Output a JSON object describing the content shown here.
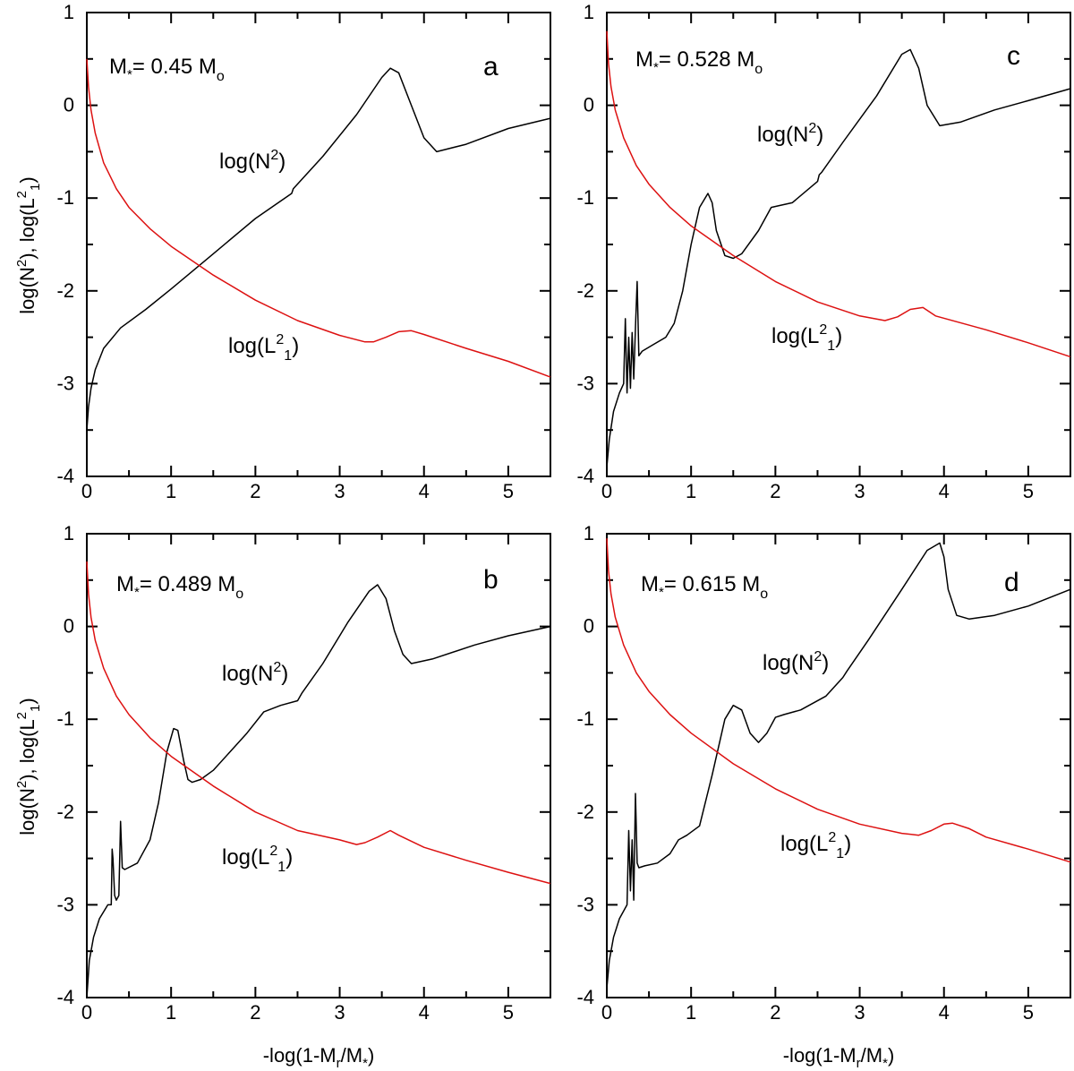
{
  "chart_data": [
    {
      "type": "line",
      "panel": "a",
      "annotation": {
        "prefix": "M",
        "prefix_sub": "*",
        "text": "= 0.45 M",
        "sub": "o"
      },
      "xlim": [
        0,
        5.5
      ],
      "ylim": [
        -4,
        1
      ],
      "xticks": [
        0,
        1,
        2,
        3,
        4,
        5
      ],
      "yticks": [
        1,
        0,
        -1,
        -2,
        -3,
        -4
      ],
      "series": [
        {
          "name": "log(N2)",
          "color": "#000000",
          "x": [
            0.0,
            0.02,
            0.05,
            0.1,
            0.2,
            0.4,
            0.7,
            1.0,
            1.5,
            2.0,
            2.43,
            2.45,
            2.8,
            3.2,
            3.5,
            3.6,
            3.7,
            3.85,
            4.0,
            4.15,
            4.5,
            5.0,
            5.5
          ],
          "y": [
            -3.5,
            -3.25,
            -3.05,
            -2.85,
            -2.62,
            -2.4,
            -2.2,
            -1.98,
            -1.6,
            -1.22,
            -0.95,
            -0.9,
            -0.55,
            -0.1,
            0.3,
            0.4,
            0.35,
            0.0,
            -0.35,
            -0.5,
            -0.42,
            -0.25,
            -0.14
          ]
        },
        {
          "name": "log(L2_1)",
          "color": "#dd1111",
          "x": [
            0.0,
            0.02,
            0.05,
            0.1,
            0.2,
            0.35,
            0.5,
            0.75,
            1.0,
            1.5,
            2.0,
            2.5,
            3.0,
            3.3,
            3.4,
            3.55,
            3.7,
            3.85,
            4.0,
            4.5,
            5.0,
            5.5
          ],
          "y": [
            0.5,
            0.2,
            -0.05,
            -0.3,
            -0.62,
            -0.9,
            -1.1,
            -1.33,
            -1.52,
            -1.83,
            -2.1,
            -2.32,
            -2.48,
            -2.55,
            -2.55,
            -2.5,
            -2.44,
            -2.43,
            -2.47,
            -2.62,
            -2.76,
            -2.93
          ]
        }
      ],
      "labels": {
        "n2": "log(N",
        "n2_sup": "2",
        "l2": "log(L",
        "l2_sup": "2",
        "l2_sub": "1",
        "close": ")"
      }
    },
    {
      "type": "line",
      "panel": "c",
      "annotation": {
        "prefix": "M",
        "prefix_sub": "*",
        "text": "= 0.528 M",
        "sub": "o"
      },
      "xlim": [
        0,
        5.5
      ],
      "ylim": [
        -4,
        1
      ],
      "xticks": [
        0,
        1,
        2,
        3,
        4,
        5
      ],
      "yticks": [
        1,
        0,
        -1,
        -2,
        -3,
        -4
      ],
      "series": [
        {
          "name": "log(N2)",
          "color": "#000000",
          "x": [
            0.0,
            0.03,
            0.08,
            0.15,
            0.2,
            0.22,
            0.24,
            0.26,
            0.28,
            0.3,
            0.32,
            0.34,
            0.36,
            0.38,
            0.42,
            0.55,
            0.7,
            0.8,
            0.9,
            1.0,
            1.1,
            1.2,
            1.25,
            1.3,
            1.4,
            1.5,
            1.6,
            1.8,
            1.95,
            2.05,
            2.2,
            2.5,
            2.52,
            2.55,
            2.8,
            3.2,
            3.5,
            3.6,
            3.7,
            3.8,
            3.95,
            4.2,
            4.6,
            5.0,
            5.5
          ],
          "y": [
            -3.9,
            -3.6,
            -3.3,
            -3.1,
            -3.0,
            -2.3,
            -3.1,
            -2.5,
            -3.05,
            -2.45,
            -2.95,
            -2.4,
            -1.9,
            -2.7,
            -2.65,
            -2.58,
            -2.5,
            -2.35,
            -2.0,
            -1.5,
            -1.1,
            -0.95,
            -1.05,
            -1.35,
            -1.62,
            -1.65,
            -1.6,
            -1.35,
            -1.1,
            -1.08,
            -1.05,
            -0.82,
            -0.75,
            -0.72,
            -0.4,
            0.1,
            0.55,
            0.6,
            0.4,
            0.0,
            -0.22,
            -0.18,
            -0.05,
            0.05,
            0.18
          ]
        },
        {
          "name": "log(L2_1)",
          "color": "#dd1111",
          "x": [
            0.0,
            0.02,
            0.05,
            0.1,
            0.2,
            0.35,
            0.5,
            0.75,
            1.0,
            1.5,
            2.0,
            2.5,
            3.0,
            3.3,
            3.45,
            3.6,
            3.75,
            3.9,
            4.5,
            5.0,
            5.5
          ],
          "y": [
            0.8,
            0.45,
            0.2,
            -0.05,
            -0.35,
            -0.65,
            -0.85,
            -1.1,
            -1.3,
            -1.62,
            -1.9,
            -2.12,
            -2.27,
            -2.32,
            -2.28,
            -2.2,
            -2.18,
            -2.27,
            -2.42,
            -2.56,
            -2.71
          ]
        }
      ],
      "labels": {
        "n2": "log(N",
        "n2_sup": "2",
        "l2": "log(L",
        "l2_sup": "2",
        "l2_sub": "1",
        "close": ")"
      }
    },
    {
      "type": "line",
      "panel": "b",
      "annotation": {
        "prefix": "M",
        "prefix_sub": "*",
        "text": "= 0.489 M",
        "sub": "o"
      },
      "xlim": [
        0,
        5.5
      ],
      "ylim": [
        -4,
        1
      ],
      "xticks": [
        0,
        1,
        2,
        3,
        4,
        5
      ],
      "yticks": [
        1,
        0,
        -1,
        -2,
        -3,
        -4
      ],
      "series": [
        {
          "name": "log(N2)",
          "color": "#000000",
          "x": [
            0.0,
            0.03,
            0.08,
            0.15,
            0.25,
            0.29,
            0.3,
            0.31,
            0.33,
            0.35,
            0.38,
            0.4,
            0.42,
            0.45,
            0.6,
            0.75,
            0.85,
            0.95,
            1.03,
            1.08,
            1.15,
            1.2,
            1.25,
            1.35,
            1.5,
            1.7,
            1.9,
            2.1,
            2.3,
            2.5,
            2.55,
            2.8,
            3.1,
            3.35,
            3.45,
            3.55,
            3.65,
            3.75,
            3.85,
            4.1,
            4.6,
            5.0,
            5.5
          ],
          "y": [
            -4.0,
            -3.6,
            -3.35,
            -3.15,
            -3.0,
            -3.0,
            -2.4,
            -2.5,
            -2.9,
            -2.95,
            -2.9,
            -2.1,
            -2.6,
            -2.62,
            -2.55,
            -2.3,
            -1.9,
            -1.35,
            -1.1,
            -1.12,
            -1.45,
            -1.65,
            -1.68,
            -1.65,
            -1.55,
            -1.35,
            -1.15,
            -0.92,
            -0.85,
            -0.8,
            -0.72,
            -0.4,
            0.05,
            0.38,
            0.45,
            0.3,
            -0.05,
            -0.3,
            -0.4,
            -0.35,
            -0.2,
            -0.1,
            0.0
          ]
        },
        {
          "name": "log(L2_1)",
          "color": "#dd1111",
          "x": [
            0.0,
            0.02,
            0.05,
            0.1,
            0.2,
            0.35,
            0.5,
            0.75,
            1.0,
            1.5,
            2.0,
            2.5,
            3.0,
            3.2,
            3.3,
            3.45,
            3.6,
            3.7,
            4.0,
            4.5,
            5.0,
            5.5
          ],
          "y": [
            0.7,
            0.35,
            0.1,
            -0.15,
            -0.45,
            -0.75,
            -0.95,
            -1.2,
            -1.4,
            -1.72,
            -2.0,
            -2.2,
            -2.3,
            -2.35,
            -2.33,
            -2.27,
            -2.2,
            -2.25,
            -2.38,
            -2.52,
            -2.65,
            -2.77
          ]
        }
      ],
      "labels": {
        "n2": "log(N",
        "n2_sup": "2",
        "l2": "log(L",
        "l2_sup": "2",
        "l2_sub": "1",
        "close": ")"
      }
    },
    {
      "type": "line",
      "panel": "d",
      "annotation": {
        "prefix": "M",
        "prefix_sub": "*",
        "text": "= 0.615 M",
        "sub": "o"
      },
      "xlim": [
        0,
        5.5
      ],
      "ylim": [
        -4,
        1
      ],
      "xticks": [
        0,
        1,
        2,
        3,
        4,
        5
      ],
      "yticks": [
        1,
        0,
        -1,
        -2,
        -3,
        -4
      ],
      "series": [
        {
          "name": "log(N2)",
          "color": "#000000",
          "x": [
            0.0,
            0.03,
            0.08,
            0.15,
            0.24,
            0.26,
            0.28,
            0.3,
            0.32,
            0.34,
            0.36,
            0.38,
            0.45,
            0.6,
            0.75,
            0.85,
            0.95,
            1.1,
            1.25,
            1.4,
            1.5,
            1.6,
            1.7,
            1.8,
            1.9,
            2.0,
            2.1,
            2.3,
            2.6,
            2.8,
            2.85,
            3.1,
            3.5,
            3.8,
            3.95,
            4.0,
            4.05,
            4.15,
            4.3,
            4.6,
            5.0,
            5.5
          ],
          "y": [
            -3.9,
            -3.6,
            -3.35,
            -3.15,
            -3.0,
            -2.2,
            -2.85,
            -2.3,
            -2.95,
            -1.8,
            -2.55,
            -2.6,
            -2.58,
            -2.55,
            -2.45,
            -2.3,
            -2.25,
            -2.15,
            -1.6,
            -1.0,
            -0.85,
            -0.9,
            -1.15,
            -1.25,
            -1.15,
            -0.98,
            -0.95,
            -0.9,
            -0.75,
            -0.55,
            -0.48,
            -0.15,
            0.4,
            0.82,
            0.9,
            0.75,
            0.4,
            0.12,
            0.08,
            0.12,
            0.22,
            0.4
          ]
        },
        {
          "name": "log(L2_1)",
          "color": "#dd1111",
          "x": [
            0.0,
            0.02,
            0.05,
            0.1,
            0.2,
            0.35,
            0.5,
            0.75,
            1.0,
            1.5,
            2.0,
            2.5,
            3.0,
            3.5,
            3.7,
            3.85,
            4.0,
            4.1,
            4.3,
            4.5,
            5.0,
            5.5
          ],
          "y": [
            0.95,
            0.6,
            0.35,
            0.1,
            -0.2,
            -0.5,
            -0.7,
            -0.95,
            -1.15,
            -1.48,
            -1.75,
            -1.97,
            -2.13,
            -2.23,
            -2.25,
            -2.2,
            -2.13,
            -2.12,
            -2.18,
            -2.27,
            -2.4,
            -2.54
          ]
        }
      ],
      "labels": {
        "n2": "log(N",
        "n2_sup": "2",
        "l2": "log(L",
        "l2_sup": "2",
        "l2_sub": "1",
        "close": ")"
      }
    }
  ],
  "axes": {
    "xlabel": {
      "prefix": "-log(1-M",
      "sub": "r",
      "mid": "/M",
      "sub2": "*",
      "suffix": ")"
    },
    "ylabel": {
      "p1": "log(N",
      "sup1": "2",
      "p2": "), log(L",
      "sup2": "2",
      "sub2": "1",
      "p3": ")"
    }
  }
}
